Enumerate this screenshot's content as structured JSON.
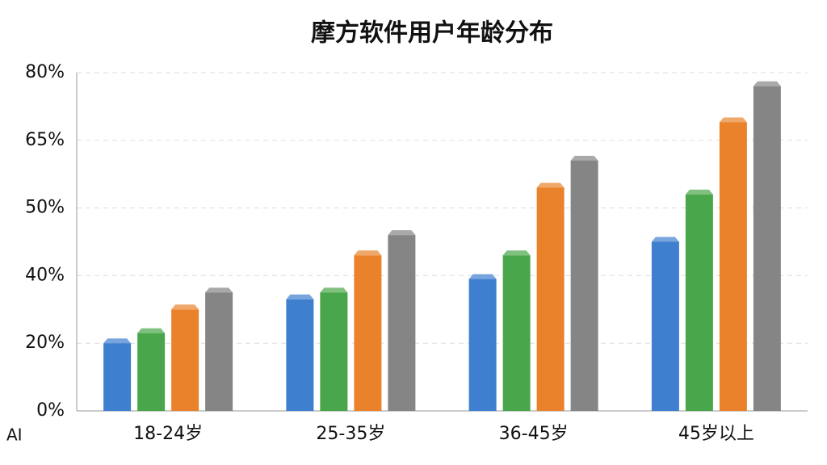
{
  "chart_data": {
    "type": "bar",
    "title": "摩方软件用户年龄分布",
    "categories": [
      "18-24岁",
      "25-35岁",
      "36-45岁",
      "45岁以上"
    ],
    "series": [
      {
        "color": "#3f7fcf",
        "values": [
          20,
          33,
          39,
          45
        ]
      },
      {
        "color": "#4aa64a",
        "values": [
          23,
          35,
          43,
          53
        ]
      },
      {
        "color": "#e9822b",
        "values": [
          30,
          43,
          54.5,
          69
        ]
      },
      {
        "color": "#858585",
        "values": [
          35,
          46,
          60.5,
          77
        ]
      }
    ],
    "ylim": [
      0,
      80
    ],
    "yticks": [
      {
        "value": 0,
        "label": "0%"
      },
      {
        "value": 20,
        "label": "20%"
      },
      {
        "value": 40,
        "label": "40%"
      },
      {
        "value": 50,
        "label": "50%"
      },
      {
        "value": 65,
        "label": "65%"
      },
      {
        "value": 80,
        "label": "80%"
      }
    ],
    "grid": true,
    "watermark": "AI"
  }
}
